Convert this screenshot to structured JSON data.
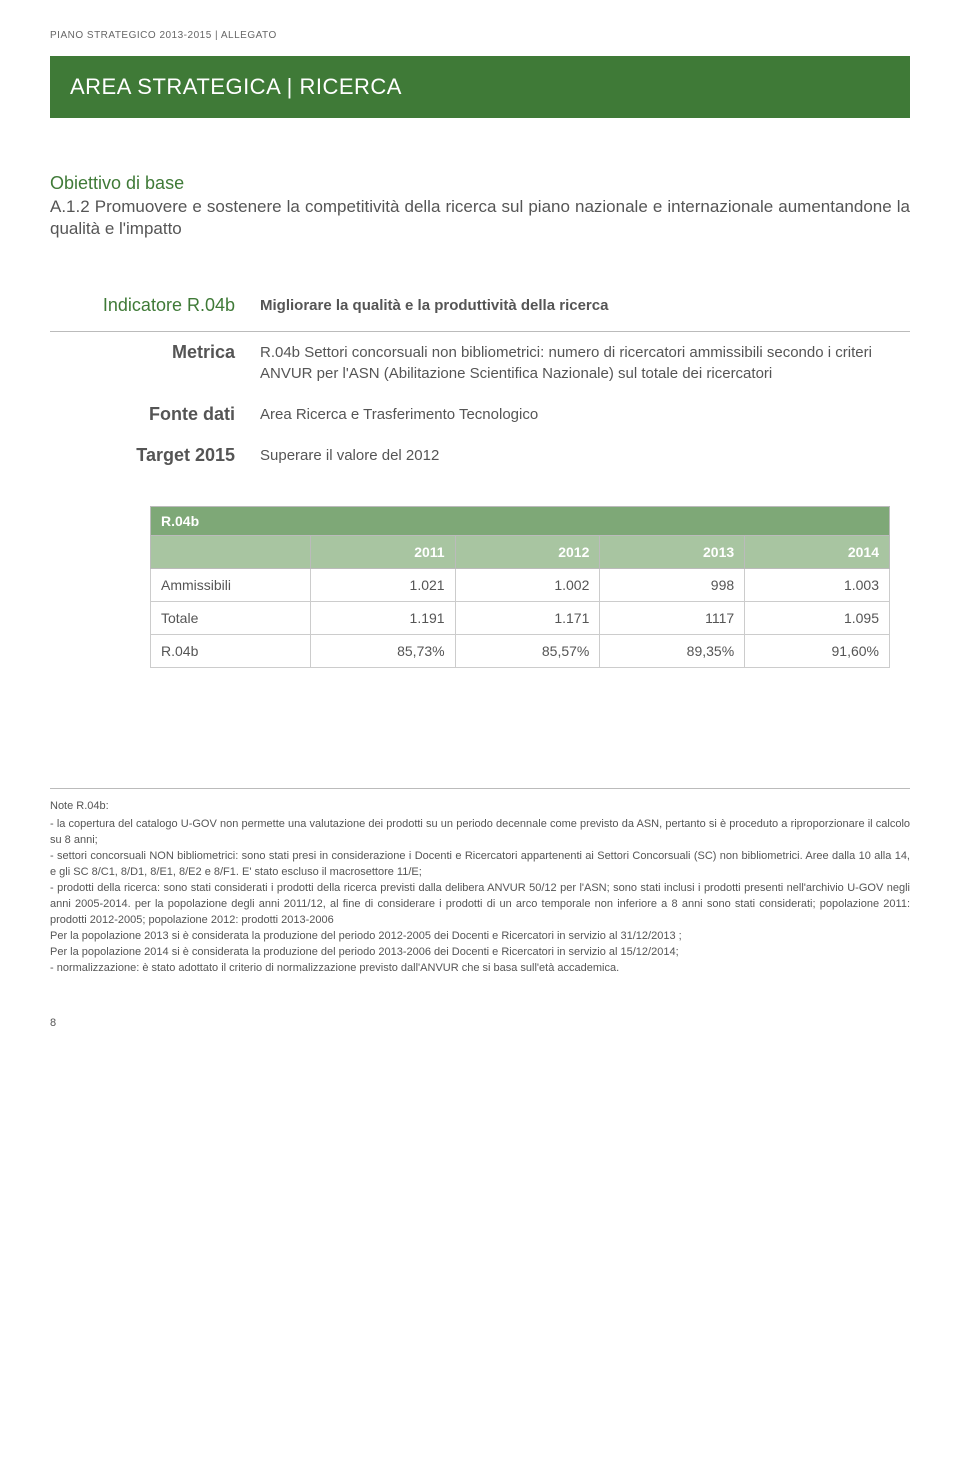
{
  "page": {
    "header": "PIANO STRATEGICO 2013-2015 | ALLEGATO",
    "title": "AREA STRATEGICA | RICERCA",
    "objective_label": "Obiettivo di base",
    "objective_desc": "A.1.2 Promuovere e sostenere la competitività della ricerca sul piano nazionale e internazionale aumentandone la qualità e l'impatto",
    "page_number": "8"
  },
  "kv": {
    "indicator_label": "Indicatore R.04b",
    "indicator_value": "Migliorare la qualità e la produttività della ricerca",
    "metric_label": "Metrica",
    "metric_value": "R.04b Settori concorsuali non bibliometrici: numero di ricercatori  ammissibili secondo i criteri ANVUR per l'ASN (Abilitazione Scientifica Nazionale) sul totale dei ricercatori",
    "fonte_label": "Fonte dati",
    "fonte_value": "Area Ricerca e Trasferimento Tecnologico",
    "target_label": "Target 2015",
    "target_value": "Superare il valore del 2012"
  },
  "data_table": {
    "title": "R.04b",
    "columns": [
      "",
      "2011",
      "2012",
      "2013",
      "2014"
    ],
    "rows": [
      [
        "Ammissibili",
        "1.021",
        "1.002",
        "998",
        "1.003"
      ],
      [
        "Totale",
        "1.191",
        "1.171",
        "1117",
        "1.095"
      ],
      [
        "R.04b",
        "85,73%",
        "85,57%",
        "89,35%",
        "91,60%"
      ]
    ],
    "col_widths": [
      "160px",
      "145px",
      "145px",
      "145px",
      "145px"
    ]
  },
  "notes": {
    "title": "Note R.04b:",
    "lines": [
      "- la copertura del catalogo U-GOV non permette una valutazione dei prodotti su un periodo decennale come previsto da ASN, pertanto si è proceduto a riproporzionare il calcolo su 8 anni;",
      "- settori concorsuali NON bibliometrici: sono stati presi in considerazione i Docenti e Ricercatori appartenenti ai Settori Concorsuali (SC) non bibliometrici. Aree dalla 10 alla 14, e gli SC 8/C1, 8/D1, 8/E1, 8/E2 e 8/F1. E' stato escluso il macrosettore 11/E;",
      "- prodotti della ricerca: sono stati considerati i prodotti della ricerca previsti dalla delibera ANVUR 50/12 per l'ASN; sono stati inclusi i prodotti presenti nell'archivio U-GOV negli anni 2005-2014. per la popolazione degli anni 2011/12, al fine di considerare i prodotti di un arco temporale non inferiore a 8 anni sono stati considerati;  popolazione 2011: prodotti 2012-2005;  popolazione 2012: prodotti 2013-2006",
      "Per la popolazione 2013 si è considerata la produzione del periodo 2012-2005 dei  Docenti e Ricercatori in servizio al 31/12/2013 ;",
      "Per la popolazione 2014 si è considerata la produzione del periodo 2013-2006 dei  Docenti e Ricercatori in servizio al 15/12/2014;",
      "- normalizzazione: è stato adottato il criterio di normalizzazione previsto dall'ANVUR che si basa sull'età accademica."
    ]
  },
  "colors": {
    "brand_green": "#3f7a37",
    "table_head1": "#7ea877",
    "table_head2": "#a8c5a1",
    "text": "#555555",
    "border": "#bbbbbb"
  }
}
